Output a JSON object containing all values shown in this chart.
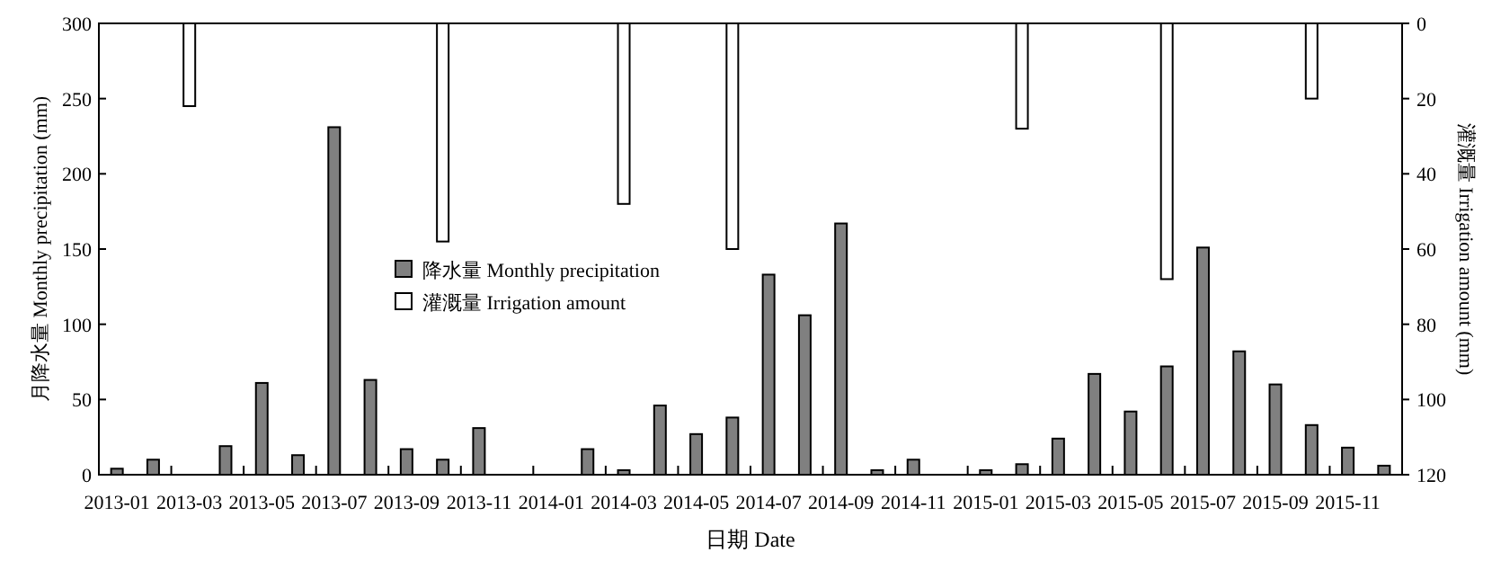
{
  "chart_data": {
    "type": "bar",
    "categories": [
      "2013-01",
      null,
      "2013-03",
      null,
      "2013-05",
      null,
      "2013-07",
      null,
      "2013-09",
      null,
      "2013-11",
      null,
      "2014-01",
      null,
      "2014-03",
      null,
      "2014-05",
      null,
      "2014-07",
      null,
      "2014-09",
      null,
      "2014-11",
      null,
      "2015-01",
      null,
      "2015-03",
      null,
      "2015-05",
      null,
      "2015-07",
      null,
      "2015-09",
      null,
      "2015-11",
      null
    ],
    "series": [
      {
        "name": "降水量 Monthly precipitation",
        "color": "#808080",
        "values": [
          4,
          10,
          0,
          19,
          61,
          13,
          231,
          63,
          17,
          10,
          31,
          0,
          0,
          17,
          3,
          46,
          27,
          38,
          133,
          106,
          167,
          3,
          10,
          0,
          3,
          7,
          24,
          67,
          42,
          72,
          151,
          82,
          60,
          33,
          18,
          6
        ]
      },
      {
        "name": "灌溉量 Irrigation amount",
        "color": "#ffffff",
        "axis": "y2",
        "values": [
          null,
          null,
          22,
          null,
          null,
          null,
          null,
          null,
          null,
          58,
          null,
          null,
          null,
          null,
          48,
          null,
          null,
          60,
          null,
          null,
          null,
          null,
          null,
          null,
          null,
          28,
          null,
          null,
          null,
          68,
          null,
          null,
          null,
          20,
          null,
          null
        ]
      }
    ],
    "xlabel": "日期 Date",
    "ylabel": "月降水量 Monthly precipitation (mm)",
    "y2label": "灌溉量 Irrigation amount (mm)",
    "ylim": [
      0,
      300
    ],
    "yticks": [
      0,
      50,
      100,
      150,
      200,
      250,
      300
    ],
    "y2lim": [
      120,
      0
    ],
    "y2ticks": [
      0,
      20,
      40,
      60,
      80,
      100,
      120
    ],
    "legend": "center"
  }
}
